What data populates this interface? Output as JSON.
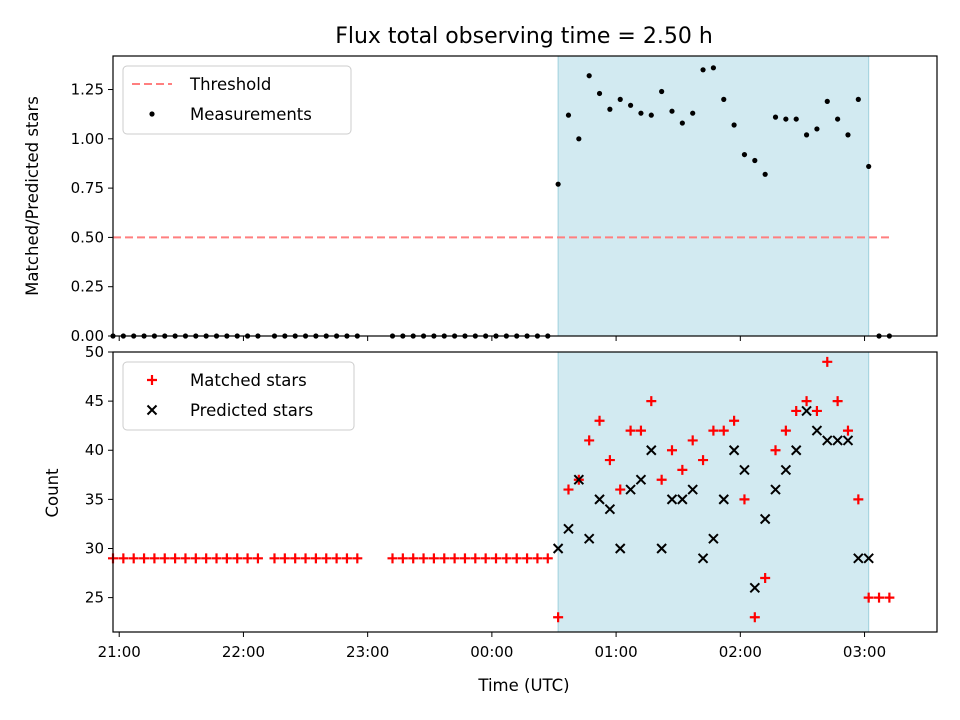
{
  "chart_data": {
    "title": "Flux total observing time = 2.50 h",
    "xlabel": "Time (UTC)",
    "x_type": "time",
    "x_range": [
      "20:57",
      "03:35"
    ],
    "x_ticks": [
      "21:00",
      "22:00",
      "23:00",
      "00:00",
      "01:00",
      "02:00",
      "03:00"
    ],
    "shaded_span": [
      "00:32",
      "03:02"
    ],
    "shade_color": "#add8e6",
    "panels": [
      {
        "type": "scatter",
        "ylabel": "Matched/Predicted stars",
        "ylim": [
          0,
          1.42
        ],
        "y_ticks": [
          "0.00",
          "0.25",
          "0.50",
          "0.75",
          "1.00",
          "1.25"
        ],
        "legend_position": "upper-left",
        "threshold": {
          "name": "Threshold",
          "y": 0.5,
          "x_from": "20:57",
          "x_to": "03:12",
          "color": "#ff7f7f",
          "style": "dashed"
        },
        "series": [
          {
            "name": "Measurements",
            "marker": "dot",
            "color": "#000000",
            "points": [
              [
                "20:57",
                0
              ],
              [
                "21:02",
                0
              ],
              [
                "21:07",
                0
              ],
              [
                "21:12",
                0
              ],
              [
                "21:17",
                0
              ],
              [
                "21:22",
                0
              ],
              [
                "21:27",
                0
              ],
              [
                "21:32",
                0
              ],
              [
                "21:37",
                0
              ],
              [
                "21:42",
                0
              ],
              [
                "21:47",
                0
              ],
              [
                "21:52",
                0
              ],
              [
                "21:57",
                0
              ],
              [
                "22:02",
                0
              ],
              [
                "22:07",
                0
              ],
              [
                "22:15",
                0
              ],
              [
                "22:20",
                0
              ],
              [
                "22:25",
                0
              ],
              [
                "22:30",
                0
              ],
              [
                "22:35",
                0
              ],
              [
                "22:40",
                0
              ],
              [
                "22:45",
                0
              ],
              [
                "22:50",
                0
              ],
              [
                "22:55",
                0
              ],
              [
                "23:12",
                0
              ],
              [
                "23:17",
                0
              ],
              [
                "23:22",
                0
              ],
              [
                "23:27",
                0
              ],
              [
                "23:32",
                0
              ],
              [
                "23:37",
                0
              ],
              [
                "23:42",
                0
              ],
              [
                "23:47",
                0
              ],
              [
                "23:52",
                0
              ],
              [
                "23:57",
                0
              ],
              [
                "00:02",
                0
              ],
              [
                "00:07",
                0
              ],
              [
                "00:12",
                0
              ],
              [
                "00:17",
                0
              ],
              [
                "00:22",
                0
              ],
              [
                "00:27",
                0
              ],
              [
                "00:32",
                0.77
              ],
              [
                "00:37",
                1.12
              ],
              [
                "00:42",
                1.0
              ],
              [
                "00:47",
                1.32
              ],
              [
                "00:52",
                1.23
              ],
              [
                "00:57",
                1.15
              ],
              [
                "01:02",
                1.2
              ],
              [
                "01:07",
                1.17
              ],
              [
                "01:12",
                1.13
              ],
              [
                "01:17",
                1.12
              ],
              [
                "01:22",
                1.24
              ],
              [
                "01:27",
                1.14
              ],
              [
                "01:32",
                1.08
              ],
              [
                "01:37",
                1.13
              ],
              [
                "01:42",
                1.35
              ],
              [
                "01:47",
                1.36
              ],
              [
                "01:52",
                1.2
              ],
              [
                "01:57",
                1.07
              ],
              [
                "02:02",
                0.92
              ],
              [
                "02:07",
                0.89
              ],
              [
                "02:12",
                0.82
              ],
              [
                "02:17",
                1.11
              ],
              [
                "02:22",
                1.1
              ],
              [
                "02:27",
                1.1
              ],
              [
                "02:32",
                1.02
              ],
              [
                "02:37",
                1.05
              ],
              [
                "02:42",
                1.19
              ],
              [
                "02:47",
                1.1
              ],
              [
                "02:52",
                1.02
              ],
              [
                "02:57",
                1.2
              ],
              [
                "03:02",
                0.86
              ],
              [
                "03:07",
                0
              ],
              [
                "03:12",
                0
              ]
            ]
          }
        ]
      },
      {
        "type": "scatter",
        "ylabel": "Count",
        "ylim": [
          21.5,
          50
        ],
        "y_ticks": [
          "25",
          "30",
          "35",
          "40",
          "45",
          "50"
        ],
        "legend_position": "upper-left",
        "series": [
          {
            "name": "Matched stars",
            "marker": "plus",
            "color": "#ff0000",
            "points": [
              [
                "20:57",
                29
              ],
              [
                "21:02",
                29
              ],
              [
                "21:07",
                29
              ],
              [
                "21:12",
                29
              ],
              [
                "21:17",
                29
              ],
              [
                "21:22",
                29
              ],
              [
                "21:27",
                29
              ],
              [
                "21:32",
                29
              ],
              [
                "21:37",
                29
              ],
              [
                "21:42",
                29
              ],
              [
                "21:47",
                29
              ],
              [
                "21:52",
                29
              ],
              [
                "21:57",
                29
              ],
              [
                "22:02",
                29
              ],
              [
                "22:07",
                29
              ],
              [
                "22:15",
                29
              ],
              [
                "22:20",
                29
              ],
              [
                "22:25",
                29
              ],
              [
                "22:30",
                29
              ],
              [
                "22:35",
                29
              ],
              [
                "22:40",
                29
              ],
              [
                "22:45",
                29
              ],
              [
                "22:50",
                29
              ],
              [
                "22:55",
                29
              ],
              [
                "23:12",
                29
              ],
              [
                "23:17",
                29
              ],
              [
                "23:22",
                29
              ],
              [
                "23:27",
                29
              ],
              [
                "23:32",
                29
              ],
              [
                "23:37",
                29
              ],
              [
                "23:42",
                29
              ],
              [
                "23:47",
                29
              ],
              [
                "23:52",
                29
              ],
              [
                "23:57",
                29
              ],
              [
                "00:02",
                29
              ],
              [
                "00:07",
                29
              ],
              [
                "00:12",
                29
              ],
              [
                "00:17",
                29
              ],
              [
                "00:22",
                29
              ],
              [
                "00:27",
                29
              ],
              [
                "00:32",
                23
              ],
              [
                "00:37",
                36
              ],
              [
                "00:42",
                37
              ],
              [
                "00:47",
                41
              ],
              [
                "00:52",
                43
              ],
              [
                "00:57",
                39
              ],
              [
                "01:02",
                36
              ],
              [
                "01:07",
                42
              ],
              [
                "01:12",
                42
              ],
              [
                "01:17",
                45
              ],
              [
                "01:22",
                37
              ],
              [
                "01:27",
                40
              ],
              [
                "01:32",
                38
              ],
              [
                "01:37",
                41
              ],
              [
                "01:42",
                39
              ],
              [
                "01:47",
                42
              ],
              [
                "01:52",
                42
              ],
              [
                "01:57",
                43
              ],
              [
                "02:02",
                35
              ],
              [
                "02:07",
                23
              ],
              [
                "02:12",
                27
              ],
              [
                "02:17",
                40
              ],
              [
                "02:22",
                42
              ],
              [
                "02:27",
                44
              ],
              [
                "02:32",
                45
              ],
              [
                "02:37",
                44
              ],
              [
                "02:42",
                49
              ],
              [
                "02:47",
                45
              ],
              [
                "02:52",
                42
              ],
              [
                "02:57",
                35
              ],
              [
                "03:02",
                25
              ],
              [
                "03:07",
                25
              ],
              [
                "03:12",
                25
              ]
            ]
          },
          {
            "name": "Predicted stars",
            "marker": "x",
            "color": "#000000",
            "points": [
              [
                "00:32",
                30
              ],
              [
                "00:37",
                32
              ],
              [
                "00:42",
                37
              ],
              [
                "00:47",
                31
              ],
              [
                "00:52",
                35
              ],
              [
                "00:57",
                34
              ],
              [
                "01:02",
                30
              ],
              [
                "01:07",
                36
              ],
              [
                "01:12",
                37
              ],
              [
                "01:17",
                40
              ],
              [
                "01:22",
                30
              ],
              [
                "01:27",
                35
              ],
              [
                "01:32",
                35
              ],
              [
                "01:37",
                36
              ],
              [
                "01:42",
                29
              ],
              [
                "01:47",
                31
              ],
              [
                "01:52",
                35
              ],
              [
                "01:57",
                40
              ],
              [
                "02:02",
                38
              ],
              [
                "02:07",
                26
              ],
              [
                "02:12",
                33
              ],
              [
                "02:17",
                36
              ],
              [
                "02:22",
                38
              ],
              [
                "02:27",
                40
              ],
              [
                "02:32",
                44
              ],
              [
                "02:37",
                42
              ],
              [
                "02:42",
                41
              ],
              [
                "02:47",
                41
              ],
              [
                "02:52",
                41
              ],
              [
                "02:57",
                29
              ],
              [
                "03:02",
                29
              ]
            ]
          }
        ]
      }
    ]
  }
}
